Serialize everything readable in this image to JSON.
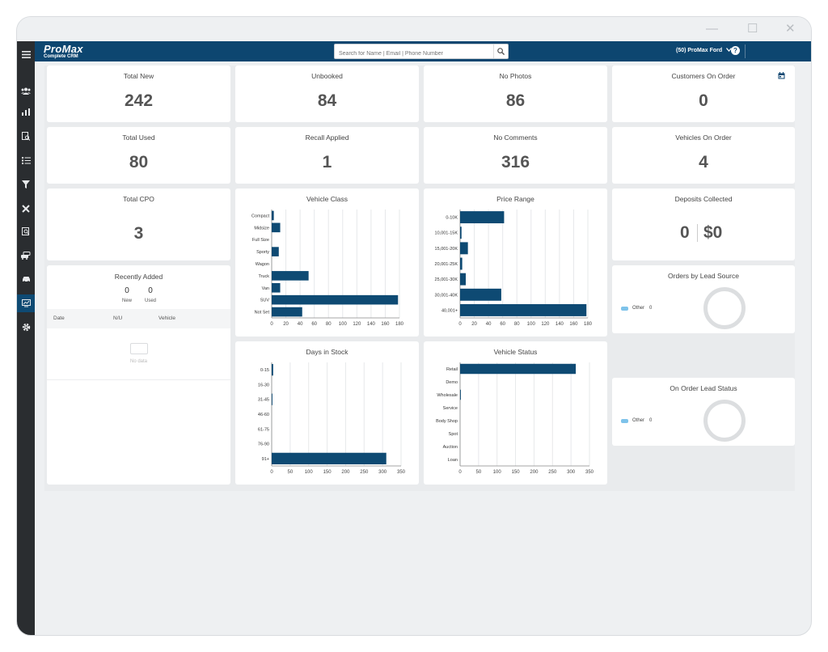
{
  "window": {
    "minimize": "—",
    "maximize": "☐",
    "close": "✕"
  },
  "topbar": {
    "logo_main": "ProMax",
    "logo_sub": "Complete CRM",
    "search_placeholder": "Search for Name | Email | Phone Number",
    "dealer": "(50) ProMax Ford",
    "help": "?"
  },
  "colors": {
    "bar": "#0e4a73",
    "topbar": "#0d4670",
    "sidebar": "#2a2d30",
    "legend_other": "#7ec3ea"
  },
  "sidebar": {
    "icons": [
      "menu-icon",
      "users-icon",
      "bar-chart-icon",
      "report-search-icon",
      "checklist-icon",
      "filter-icon",
      "tools-icon",
      "document-search-icon",
      "cars-icon",
      "car-icon",
      "dashboard-icon",
      "gear-icon"
    ],
    "active": "dashboard-icon"
  },
  "stats": [
    {
      "label": "Total New",
      "value": "242"
    },
    {
      "label": "Unbooked",
      "value": "84"
    },
    {
      "label": "No Photos",
      "value": "86"
    },
    {
      "label": "Customers On Order",
      "value": "0"
    },
    {
      "label": "Total Used",
      "value": "80"
    },
    {
      "label": "Recall Applied",
      "value": "1"
    },
    {
      "label": "No Comments",
      "value": "316"
    },
    {
      "label": "Vehicles On Order",
      "value": "4"
    },
    {
      "label": "Total CPO",
      "value": "3"
    }
  ],
  "deposits": {
    "title": "Deposits Collected",
    "count": "0",
    "amount": "$0"
  },
  "recently_added": {
    "title": "Recently Added",
    "new_count": "0",
    "new_label": "New",
    "used_count": "0",
    "used_label": "Used",
    "columns": [
      "Date",
      "N/U",
      "Vehicle"
    ],
    "empty_text": "No data"
  },
  "orders_by_lead_source": {
    "title": "Orders by Lead Source",
    "legend": "Other",
    "value": "0"
  },
  "on_order_lead_status": {
    "title": "On Order Lead Status",
    "legend": "Other",
    "value": "0"
  },
  "chart_data": [
    {
      "type": "bar",
      "orientation": "horizontal",
      "title": "Vehicle Class",
      "categories": [
        "Compact",
        "Midsize",
        "Full Size",
        "Sporty",
        "Wagon",
        "Truck",
        "Van",
        "SUV",
        "Not Set"
      ],
      "values": [
        3,
        12,
        0,
        10,
        0,
        52,
        12,
        178,
        43
      ],
      "xlim": [
        0,
        180
      ],
      "ticks": [
        "0",
        "20",
        "40",
        "60",
        "80",
        "100",
        "120",
        "140",
        "160",
        "180"
      ],
      "grid": true
    },
    {
      "type": "bar",
      "orientation": "horizontal",
      "title": "Price Range",
      "categories": [
        "0-10K",
        "10,001-15K",
        "15,001-20K",
        "20,001-25K",
        "25,001-30K",
        "30,001-40K",
        "40,001+"
      ],
      "values": [
        62,
        2,
        11,
        3,
        8,
        58,
        178
      ],
      "xlim": [
        0,
        180
      ],
      "ticks": [
        "0",
        "20",
        "40",
        "60",
        "80",
        "100",
        "120",
        "140",
        "160",
        "180"
      ],
      "grid": true
    },
    {
      "type": "bar",
      "orientation": "horizontal",
      "title": "Days in Stock",
      "categories": [
        "0-15",
        "16-30",
        "31-45",
        "46-60",
        "61-75",
        "76-90",
        "91+"
      ],
      "values": [
        4,
        0,
        2,
        0,
        0,
        0,
        310
      ],
      "xlim": [
        0,
        350
      ],
      "ticks": [
        "0",
        "50",
        "100",
        "150",
        "200",
        "250",
        "300",
        "350"
      ],
      "grid": true
    },
    {
      "type": "bar",
      "orientation": "horizontal",
      "title": "Vehicle Status",
      "categories": [
        "Retail",
        "Demo",
        "Wholesale",
        "Service",
        "Body Shop",
        "Spot",
        "Auction",
        "Loan"
      ],
      "values": [
        313,
        0,
        2,
        0,
        0,
        0,
        0,
        0
      ],
      "xlim": [
        0,
        350
      ],
      "ticks": [
        "0",
        "50",
        "100",
        "150",
        "200",
        "250",
        "300",
        "350"
      ],
      "grid": true
    }
  ]
}
